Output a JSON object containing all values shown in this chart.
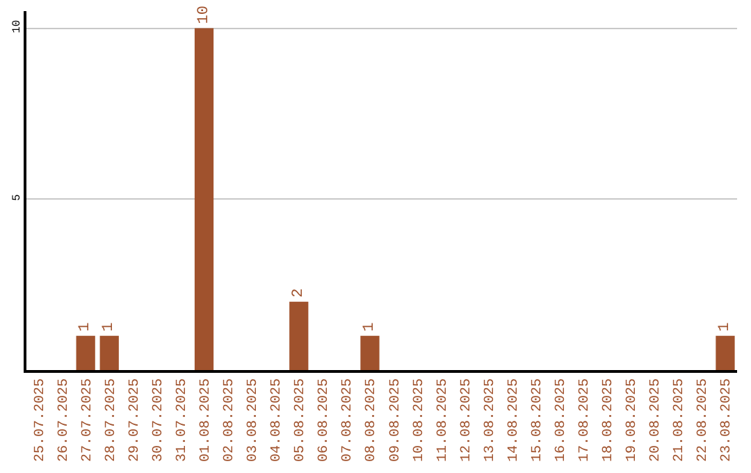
{
  "chart_data": {
    "type": "bar",
    "categories": [
      "25.07.2025",
      "26.07.2025",
      "27.07.2025",
      "28.07.2025",
      "29.07.2025",
      "30.07.2025",
      "31.07.2025",
      "01.08.2025",
      "02.08.2025",
      "03.08.2025",
      "04.08.2025",
      "05.08.2025",
      "06.08.2025",
      "07.08.2025",
      "08.08.2025",
      "09.08.2025",
      "10.08.2025",
      "11.08.2025",
      "12.08.2025",
      "13.08.2025",
      "14.08.2025",
      "15.08.2025",
      "16.08.2025",
      "17.08.2025",
      "18.08.2025",
      "19.08.2025",
      "20.08.2025",
      "21.08.2025",
      "22.08.2025",
      "23.08.2025"
    ],
    "values": [
      0,
      0,
      1,
      1,
      0,
      0,
      0,
      10,
      0,
      0,
      0,
      2,
      0,
      0,
      1,
      0,
      0,
      0,
      0,
      0,
      0,
      0,
      0,
      0,
      0,
      0,
      0,
      0,
      0,
      1
    ],
    "value_labels": [
      null,
      null,
      "1",
      "1",
      null,
      null,
      null,
      "10",
      null,
      null,
      null,
      "2",
      null,
      null,
      "1",
      null,
      null,
      null,
      null,
      null,
      null,
      null,
      null,
      null,
      null,
      null,
      null,
      null,
      null,
      "1"
    ],
    "color": "#a0522d",
    "ylim": [
      0,
      10.5
    ],
    "yticks": [
      5,
      10
    ],
    "grid": "y"
  }
}
